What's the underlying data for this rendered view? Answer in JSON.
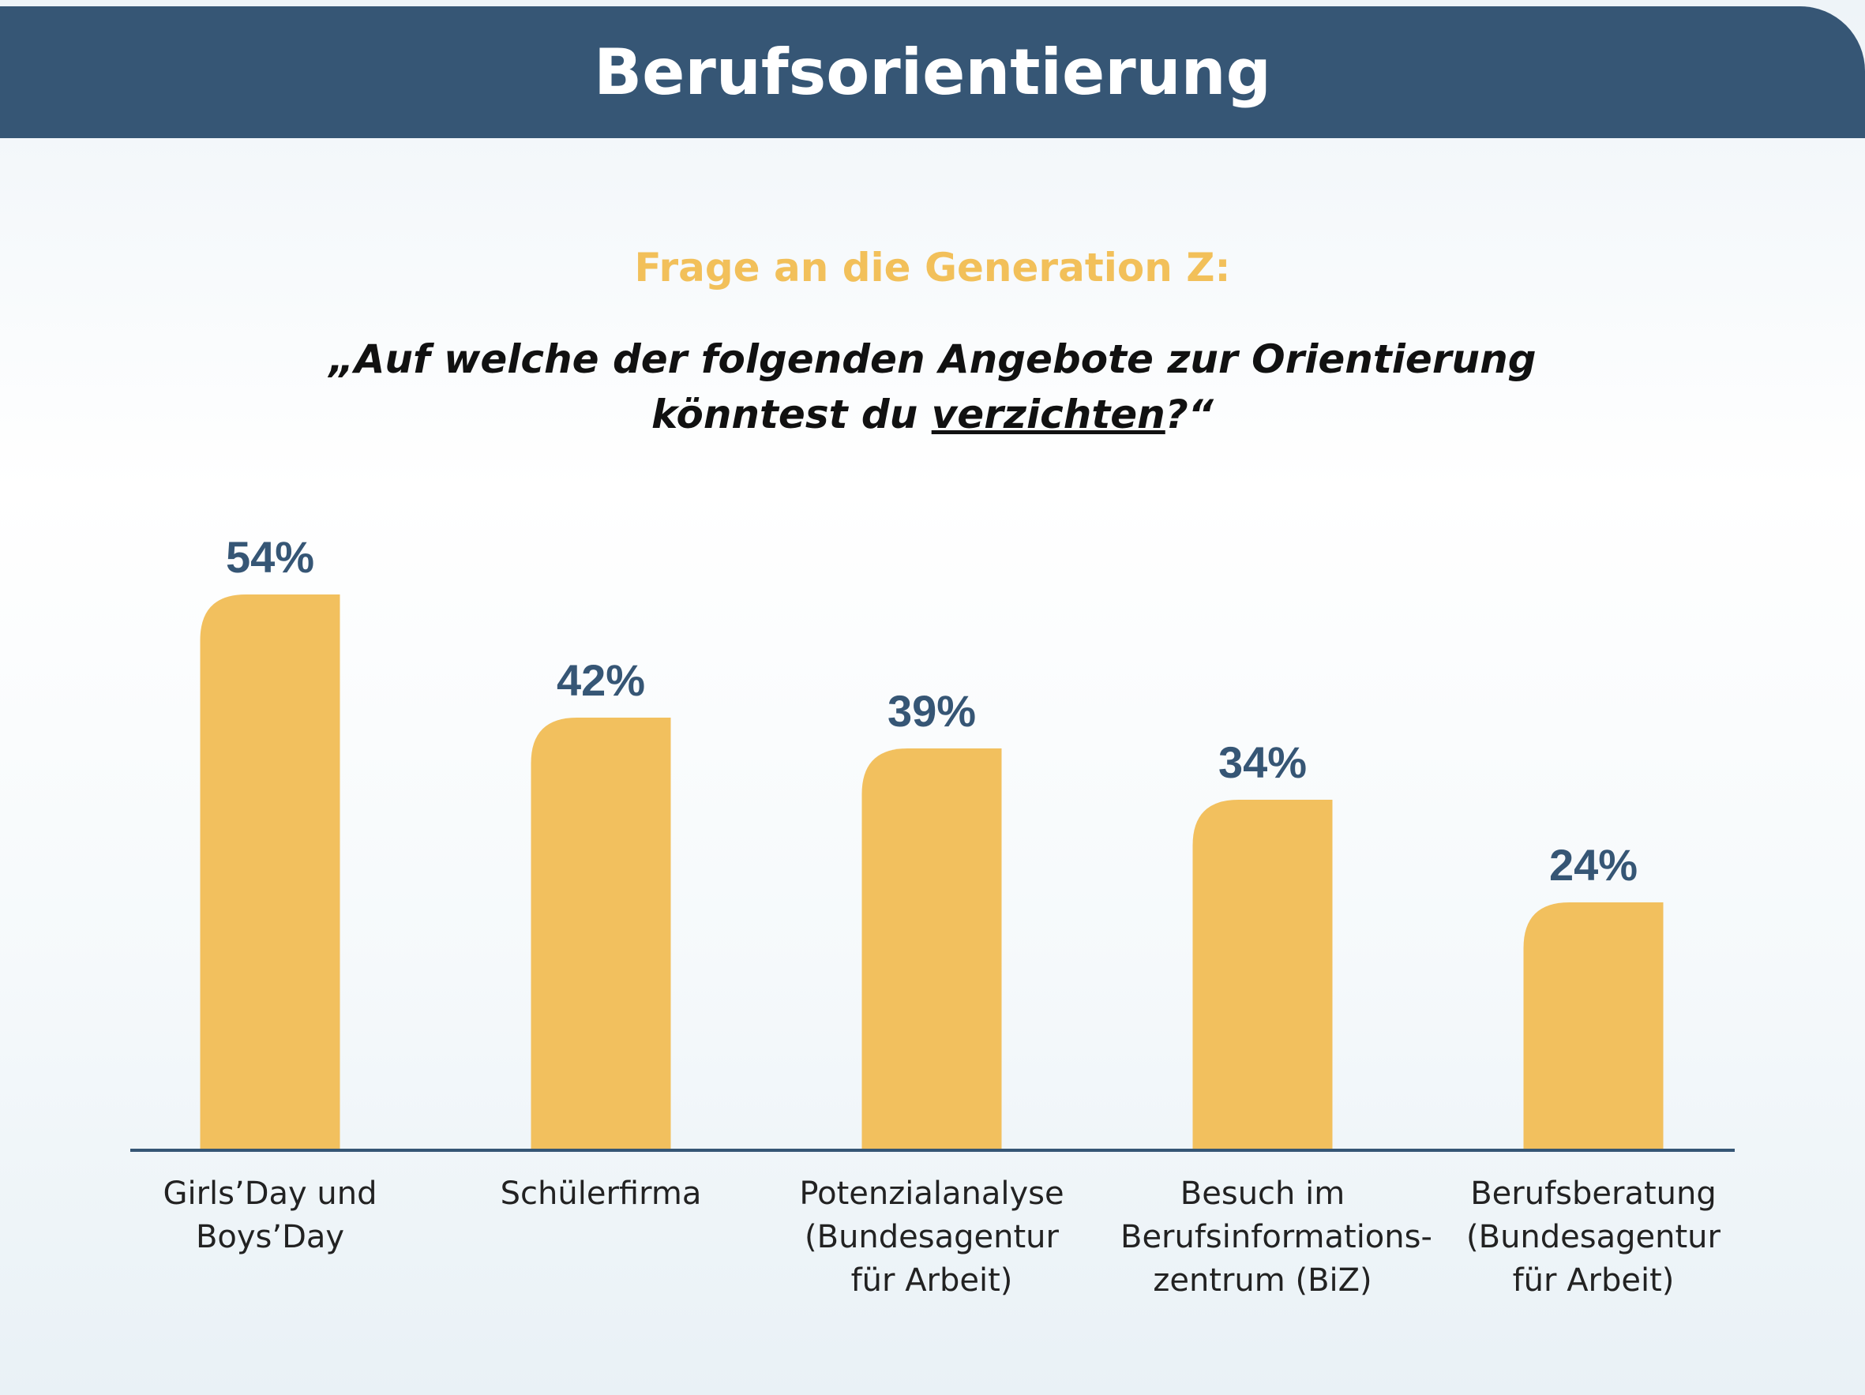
{
  "header": {
    "title": "Berufsorientierung"
  },
  "question": {
    "intro": "Frage an die Generation Z:",
    "line1": "„Auf welche der folgenden Angebote zur Orientierung",
    "line2_start": "könntest du ",
    "line2_underlined": "verzichten",
    "line2_end": "?“"
  },
  "colors": {
    "header_bg": "#365675",
    "bar": "#f2c05e",
    "accent_text": "#f2c05a",
    "value_text": "#365675"
  },
  "chart_data": {
    "type": "bar",
    "categories": [
      [
        "Girls’Day und",
        "Boys’Day"
      ],
      [
        "Schülerfirma"
      ],
      [
        "Potenzialanalyse",
        "(Bundesagentur",
        "für Arbeit)"
      ],
      [
        "Besuch im",
        "Berufsinformations-",
        "zentrum (BiZ)"
      ],
      [
        "Berufsberatung",
        "(Bundesagentur",
        "für Arbeit)"
      ]
    ],
    "values": [
      54,
      42,
      39,
      34,
      24
    ],
    "value_labels": [
      "54%",
      "42%",
      "39%",
      "34%",
      "24%"
    ],
    "ylim": [
      0,
      100
    ],
    "grid": false,
    "legend": "none"
  }
}
